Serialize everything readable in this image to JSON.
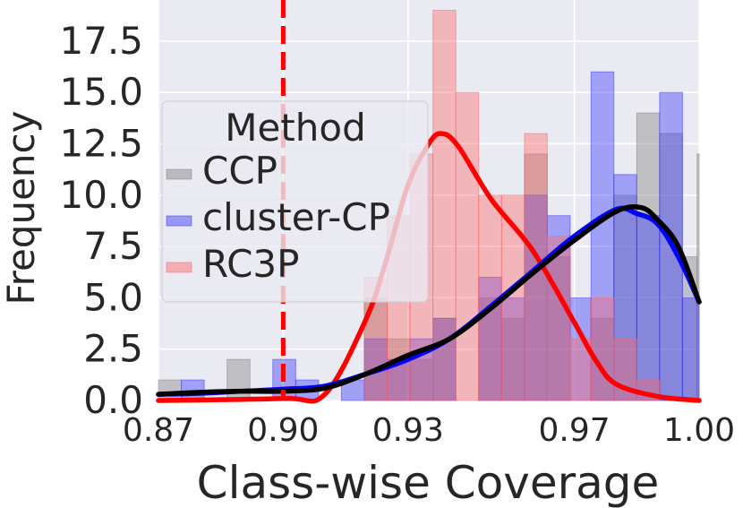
{
  "chart_data": {
    "type": "histogram",
    "xlabel": "Class-wise Coverage",
    "ylabel": "Frequency",
    "xlim": [
      0.87,
      1.0
    ],
    "ylim": [
      0,
      19.5
    ],
    "x_ticks": [
      "0.87",
      "0.90",
      "0.93",
      "0.97",
      "1.00"
    ],
    "x_tick_values": [
      0.87,
      0.9,
      0.93,
      0.97,
      1.0
    ],
    "y_ticks": [
      "0.0",
      "2.5",
      "5.0",
      "7.5",
      "10.0",
      "12.5",
      "15.0",
      "17.5"
    ],
    "y_tick_values": [
      0,
      2.5,
      5,
      7.5,
      10,
      12.5,
      15,
      17.5
    ],
    "grid": true,
    "background": "#eaeaf2",
    "threshold": {
      "x": 0.9,
      "color": "#ff0000",
      "style": "dashed"
    },
    "legend": {
      "title": "Method",
      "placement": "center-left",
      "entries": [
        "CCP",
        "cluster-CP",
        "RC3P"
      ]
    },
    "series": [
      {
        "name": "CCP",
        "color": "#808080",
        "line_color": "#000000",
        "bins": [
          {
            "x0": 0.87,
            "x1": 0.8755,
            "count": 1
          },
          {
            "x0": 0.8865,
            "x1": 0.892,
            "count": 2
          },
          {
            "x0": 0.9195,
            "x1": 0.925,
            "count": 5
          },
          {
            "x0": 0.925,
            "x1": 0.9305,
            "count": 3
          },
          {
            "x0": 0.9305,
            "x1": 0.936,
            "count": 2
          },
          {
            "x0": 0.936,
            "x1": 0.9415,
            "count": 4
          },
          {
            "x0": 0.947,
            "x1": 0.9525,
            "count": 5
          },
          {
            "x0": 0.9525,
            "x1": 0.958,
            "count": 4
          },
          {
            "x0": 0.958,
            "x1": 0.9635,
            "count": 12
          },
          {
            "x0": 0.9635,
            "x1": 0.969,
            "count": 7
          },
          {
            "x0": 0.974,
            "x1": 0.9795,
            "count": 4
          },
          {
            "x0": 0.9795,
            "x1": 0.985,
            "count": 10
          },
          {
            "x0": 0.985,
            "x1": 0.9905,
            "count": 14
          },
          {
            "x0": 0.9905,
            "x1": 0.996,
            "count": 13
          },
          {
            "x0": 0.996,
            "x1": 0.9995,
            "count": 7
          },
          {
            "x0": 0.9995,
            "x1": 1.0,
            "count": 12
          }
        ],
        "kde": [
          [
            0.87,
            0.3
          ],
          [
            0.88,
            0.4
          ],
          [
            0.89,
            0.45
          ],
          [
            0.9,
            0.45
          ],
          [
            0.91,
            0.6
          ],
          [
            0.92,
            1.3
          ],
          [
            0.93,
            2.2
          ],
          [
            0.94,
            3.0
          ],
          [
            0.95,
            4.5
          ],
          [
            0.96,
            6.2
          ],
          [
            0.97,
            7.8
          ],
          [
            0.98,
            9.2
          ],
          [
            0.986,
            9.4
          ],
          [
            0.99,
            8.8
          ],
          [
            0.995,
            7.5
          ],
          [
            1.0,
            4.8
          ]
        ]
      },
      {
        "name": "cluster-CP",
        "color": "#3333ff",
        "line_color": "#0000ff",
        "bins": [
          {
            "x0": 0.8755,
            "x1": 0.881,
            "count": 1
          },
          {
            "x0": 0.8975,
            "x1": 0.903,
            "count": 2
          },
          {
            "x0": 0.903,
            "x1": 0.9085,
            "count": 1
          },
          {
            "x0": 0.914,
            "x1": 0.9195,
            "count": 1
          },
          {
            "x0": 0.9195,
            "x1": 0.925,
            "count": 3
          },
          {
            "x0": 0.925,
            "x1": 0.9305,
            "count": 2
          },
          {
            "x0": 0.9305,
            "x1": 0.936,
            "count": 3
          },
          {
            "x0": 0.936,
            "x1": 0.9415,
            "count": 4
          },
          {
            "x0": 0.947,
            "x1": 0.9525,
            "count": 6
          },
          {
            "x0": 0.9525,
            "x1": 0.958,
            "count": 5
          },
          {
            "x0": 0.958,
            "x1": 0.9635,
            "count": 10
          },
          {
            "x0": 0.9635,
            "x1": 0.969,
            "count": 9
          },
          {
            "x0": 0.969,
            "x1": 0.974,
            "count": 5
          },
          {
            "x0": 0.974,
            "x1": 0.9795,
            "count": 16
          },
          {
            "x0": 0.9795,
            "x1": 0.985,
            "count": 11
          },
          {
            "x0": 0.985,
            "x1": 0.9905,
            "count": 9
          },
          {
            "x0": 0.9905,
            "x1": 0.996,
            "count": 15
          },
          {
            "x0": 0.996,
            "x1": 1.0,
            "count": 5
          }
        ],
        "kde": [
          [
            0.87,
            0.3
          ],
          [
            0.88,
            0.35
          ],
          [
            0.89,
            0.45
          ],
          [
            0.9,
            0.55
          ],
          [
            0.91,
            0.7
          ],
          [
            0.92,
            1.3
          ],
          [
            0.93,
            2.0
          ],
          [
            0.94,
            3.0
          ],
          [
            0.95,
            4.6
          ],
          [
            0.96,
            6.3
          ],
          [
            0.97,
            8.0
          ],
          [
            0.98,
            9.3
          ],
          [
            0.985,
            9.1
          ],
          [
            0.99,
            8.6
          ],
          [
            0.995,
            7.0
          ],
          [
            1.0,
            4.8
          ]
        ]
      },
      {
        "name": "RC3P",
        "color": "#ff6666",
        "line_color": "#ff0000",
        "bins": [
          {
            "x0": 0.9195,
            "x1": 0.925,
            "count": 6
          },
          {
            "x0": 0.925,
            "x1": 0.9305,
            "count": 9
          },
          {
            "x0": 0.9305,
            "x1": 0.936,
            "count": 12
          },
          {
            "x0": 0.936,
            "x1": 0.9415,
            "count": 19
          },
          {
            "x0": 0.9415,
            "x1": 0.947,
            "count": 15
          },
          {
            "x0": 0.947,
            "x1": 0.9525,
            "count": 10
          },
          {
            "x0": 0.9525,
            "x1": 0.958,
            "count": 10
          },
          {
            "x0": 0.958,
            "x1": 0.9635,
            "count": 13
          },
          {
            "x0": 0.9635,
            "x1": 0.969,
            "count": 8
          },
          {
            "x0": 0.969,
            "x1": 0.974,
            "count": 3
          },
          {
            "x0": 0.974,
            "x1": 0.9795,
            "count": 5
          },
          {
            "x0": 0.9795,
            "x1": 0.985,
            "count": 3
          },
          {
            "x0": 0.985,
            "x1": 0.9905,
            "count": 1
          }
        ],
        "kde": [
          [
            0.87,
            0.0
          ],
          [
            0.9,
            0.1
          ],
          [
            0.91,
            0.3
          ],
          [
            0.92,
            4.0
          ],
          [
            0.925,
            7.0
          ],
          [
            0.93,
            10.5
          ],
          [
            0.935,
            12.5
          ],
          [
            0.938,
            13.0
          ],
          [
            0.942,
            12.4
          ],
          [
            0.95,
            9.8
          ],
          [
            0.96,
            7.3
          ],
          [
            0.97,
            3.8
          ],
          [
            0.975,
            2.0
          ],
          [
            0.98,
            0.8
          ],
          [
            0.99,
            0.2
          ],
          [
            1.0,
            0.0
          ]
        ]
      }
    ]
  }
}
